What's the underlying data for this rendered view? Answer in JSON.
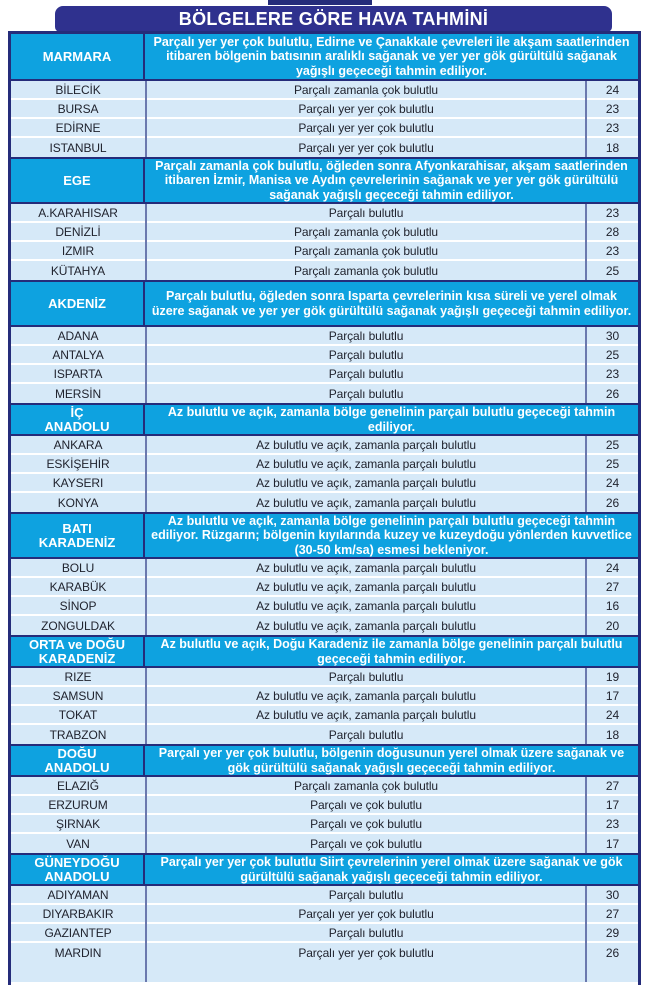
{
  "page": {
    "title": "BÖLGELERE GÖRE HAVA TAHMİNİ"
  },
  "colors": {
    "navy_border": "#252c7a",
    "title_bg": "#2f318e",
    "region_band_bg": "#0ea2e0",
    "city_row_bg": "#d6e9f8",
    "column_divider": "#6b79ae",
    "dark_text": "#20232e",
    "light_text": "#ffffff"
  },
  "table": {
    "regions": [
      {
        "name": "MARMARA",
        "desc_lines": 3,
        "description": "Parçalı yer yer çok bulutlu, Edirne ve Çanakkale çevreleri ile akşam saatlerinden itibaren bölgenin batısının aralıklı sağanak ve yer yer gök gürültülü sağanak yağışlı geçeceği tahmin ediliyor.",
        "cities": [
          {
            "name": "BİLECİK",
            "forecast": "Parçalı zamanla çok bulutlu",
            "temp": "24"
          },
          {
            "name": "BURSA",
            "forecast": "Parçalı yer yer çok bulutlu",
            "temp": "23"
          },
          {
            "name": "EDİRNE",
            "forecast": "Parçalı yer yer çok bulutlu",
            "temp": "23"
          },
          {
            "name": "ISTANBUL",
            "forecast": "Parçalı yer yer çok bulutlu",
            "temp": "18"
          }
        ]
      },
      {
        "name": "EGE",
        "desc_lines": 3,
        "description": "Parçalı zamanla çok bulutlu, öğleden sonra Afyonkarahisar, akşam saatlerinden itibaren İzmir, Manisa ve Aydın çevrelerinin sağanak ve yer yer gök gürültülü sağanak yağışlı geçeceği tahmin ediliyor.",
        "cities": [
          {
            "name": "A.KARAHISAR",
            "forecast": "Parçalı bulutlu",
            "temp": "23"
          },
          {
            "name": "DENİZLİ",
            "forecast": "Parçalı zamanla çok bulutlu",
            "temp": "28"
          },
          {
            "name": "IZMIR",
            "forecast": "Parçalı zamanla çok bulutlu",
            "temp": "23"
          },
          {
            "name": "KÜTAHYA",
            "forecast": "Parçalı zamanla çok bulutlu",
            "temp": "25"
          }
        ]
      },
      {
        "name": "AKDENİZ",
        "desc_lines": 3,
        "description": "Parçalı bulutlu, öğleden sonra Isparta çevrelerinin kısa süreli ve yerel olmak üzere sağanak ve yer yer gök gürültülü sağanak yağışlı geçeceği tahmin ediliyor.",
        "cities": [
          {
            "name": "ADANA",
            "forecast": "Parçalı bulutlu",
            "temp": "30"
          },
          {
            "name": "ANTALYA",
            "forecast": "Parçalı bulutlu",
            "temp": "25"
          },
          {
            "name": "ISPARTA",
            "forecast": "Parçalı bulutlu",
            "temp": "23"
          },
          {
            "name": "MERSİN",
            "forecast": "Parçalı bulutlu",
            "temp": "26"
          }
        ]
      },
      {
        "name": "İÇ\nANADOLU",
        "desc_lines": 2,
        "description": "Az bulutlu ve açık, zamanla bölge genelinin parçalı bulutlu geçeceği tahmin ediliyor.",
        "cities": [
          {
            "name": "ANKARA",
            "forecast": "Az bulutlu ve açık, zamanla parçalı bulutlu",
            "temp": "25"
          },
          {
            "name": "ESKİŞEHİR",
            "forecast": "Az bulutlu ve açık, zamanla parçalı bulutlu",
            "temp": "25"
          },
          {
            "name": "KAYSERI",
            "forecast": "Az bulutlu ve açık, zamanla parçalı bulutlu",
            "temp": "24"
          },
          {
            "name": "KONYA",
            "forecast": "Az bulutlu ve açık, zamanla parçalı bulutlu",
            "temp": "26"
          }
        ]
      },
      {
        "name": "BATI\nKARADENİZ",
        "desc_lines": 3,
        "description": "Az bulutlu ve açık, zamanla bölge genelinin parçalı bulutlu geçeceği tahmin ediliyor. Rüzgarın; bölgenin kıyılarında kuzey ve kuzeydoğu yönlerden kuvvetlice (30-50 km/sa) esmesi bekleniyor.",
        "cities": [
          {
            "name": "BOLU",
            "forecast": "Az bulutlu ve açık, zamanla parçalı bulutlu",
            "temp": "24"
          },
          {
            "name": "KARABÜK",
            "forecast": "Az bulutlu ve açık, zamanla parçalı bulutlu",
            "temp": "27"
          },
          {
            "name": "SİNOP",
            "forecast": "Az bulutlu ve açık, zamanla parçalı bulutlu",
            "temp": "16"
          },
          {
            "name": "ZONGULDAK",
            "forecast": "Az bulutlu ve açık, zamanla parçalı bulutlu",
            "temp": "20"
          }
        ]
      },
      {
        "name": "ORTA ve DOĞU\nKARADENİZ",
        "desc_lines": 2,
        "description": "Az bulutlu ve açık, Doğu Karadeniz ile zamanla bölge genelinin parçalı bulutlu geçeceği tahmin ediliyor.",
        "cities": [
          {
            "name": "RIZE",
            "forecast": "Parçalı bulutlu",
            "temp": "19"
          },
          {
            "name": "SAMSUN",
            "forecast": "Az bulutlu ve açık, zamanla parçalı bulutlu",
            "temp": "17"
          },
          {
            "name": "TOKAT",
            "forecast": "Az bulutlu ve açık, zamanla parçalı bulutlu",
            "temp": "24"
          },
          {
            "name": "TRABZON",
            "forecast": "Parçalı bulutlu",
            "temp": "18"
          }
        ]
      },
      {
        "name": "DOĞU\nANADOLU",
        "desc_lines": 2,
        "description": "Parçalı yer yer çok bulutlu, bölgenin doğusunun yerel olmak üzere sağanak ve gök gürültülü sağanak yağışlı geçeceği tahmin ediliyor.",
        "cities": [
          {
            "name": "ELAZIĞ",
            "forecast": "Parçalı zamanla çok bulutlu",
            "temp": "27"
          },
          {
            "name": "ERZURUM",
            "forecast": "Parçalı ve çok bulutlu",
            "temp": "17"
          },
          {
            "name": "ŞIRNAK",
            "forecast": "Parçalı ve çok bulutlu",
            "temp": "23"
          },
          {
            "name": "VAN",
            "forecast": "Parçalı ve çok bulutlu",
            "temp": "17"
          }
        ]
      },
      {
        "name": "GÜNEYDOĞU\nANADOLU",
        "desc_lines": 2,
        "description": "Parçalı yer yer çok bulutlu Siirt çevrelerinin yerel olmak üzere sağanak ve gök gürültülü sağanak yağışlı geçeceği tahmin ediliyor.",
        "cities": [
          {
            "name": "ADIYAMAN",
            "forecast": "Parçalı bulutlu",
            "temp": "30"
          },
          {
            "name": "DIYARBAKIR",
            "forecast": "Parçalı yer yer çok bulutlu",
            "temp": "27"
          },
          {
            "name": "GAZIANTEP",
            "forecast": "Parçalı bulutlu",
            "temp": "29"
          },
          {
            "name": "MARDIN",
            "forecast": "Parçalı yer yer çok bulutlu",
            "temp": "26"
          }
        ]
      }
    ]
  }
}
